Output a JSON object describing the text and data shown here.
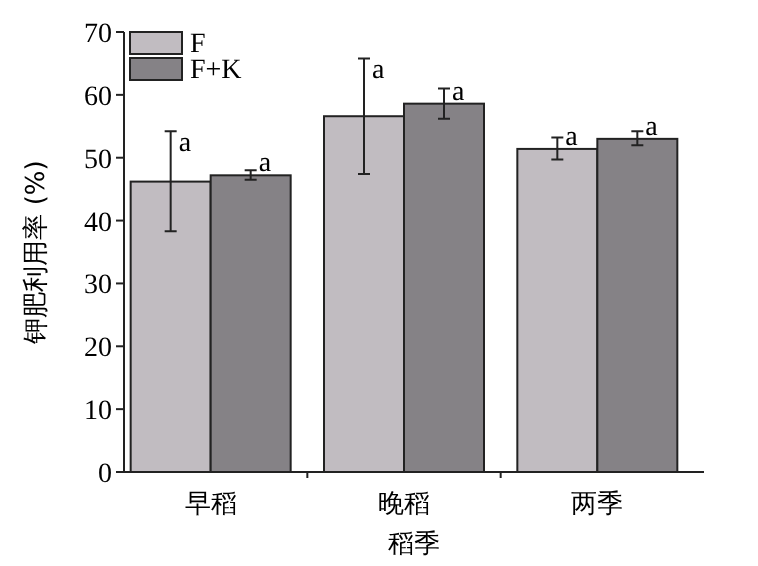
{
  "chart_data": {
    "type": "bar",
    "xlabel": "稻季",
    "ylabel": "钾肥利用率 (%)",
    "categories": [
      "早稻",
      "晚稻",
      "两季"
    ],
    "series": [
      {
        "name": "F",
        "color": "#c1bcc1",
        "values": [
          46.2,
          56.6,
          51.4
        ],
        "errors": [
          [
            38.3,
            54.2
          ],
          [
            47.4,
            65.8
          ],
          [
            49.7,
            53.2
          ]
        ]
      },
      {
        "name": "F+K",
        "color": "#858286",
        "values": [
          47.2,
          58.6,
          53.0
        ],
        "errors": [
          [
            46.5,
            48.0
          ],
          [
            56.2,
            61.0
          ],
          [
            52.0,
            54.2
          ]
        ]
      }
    ],
    "ylim": [
      0,
      70
    ],
    "yticks": [
      0,
      10,
      20,
      30,
      40,
      50,
      60,
      70
    ],
    "legend": "top left",
    "grid": false,
    "annotations": [
      {
        "text": "a",
        "x": "早稻",
        "y": 46.2
      },
      {
        "text": "a",
        "x": "早稻",
        "y": 47.2
      },
      {
        "text": "a",
        "x": "晚稻",
        "y": 56.6
      },
      {
        "text": "a",
        "x": "晚稻",
        "y": 58.6
      },
      {
        "text": "a",
        "x": "两季",
        "y": 51.4
      },
      {
        "text": "a",
        "x": "两季",
        "y": 53.0
      }
    ]
  }
}
